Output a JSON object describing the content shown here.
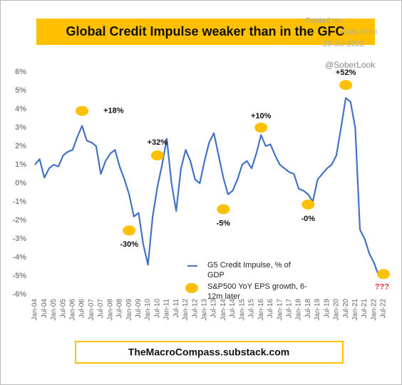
{
  "chart_data": {
    "type": "line",
    "title": "Global Credit Impulse weaker than in the GFC",
    "watermark": [
      "Posted on",
      "Daily Shot",
      "29-Jul-2022"
    ],
    "handle": "@SoberLook",
    "footer": "TheMacroCompass.substack.com",
    "categories": [
      "Jan-04",
      null,
      "Jul-04",
      null,
      "Jan-05",
      null,
      "Jul-05",
      null,
      "Jan-06",
      null,
      "Jul-06",
      null,
      "Jan-07",
      null,
      "Jul-07",
      null,
      "Jan-08",
      null,
      "Jul-08",
      null,
      "Jan-09",
      null,
      "Jul-09",
      null,
      "Jan-10",
      null,
      "Jul-10",
      null,
      "Jan-11",
      null,
      "Jul-11",
      null,
      "Jan-12",
      null,
      "Jul-12",
      null,
      "Jan-13",
      null,
      "Jul-13",
      null,
      "Jan-14",
      null,
      "Jul-14",
      null,
      "Jan-15",
      null,
      "Jul-15",
      null,
      "Jan-16",
      null,
      "Jul-16",
      null,
      "Jan-17",
      null,
      "Jul-17",
      null,
      "Jan-18",
      null,
      "Jul-18",
      null,
      "Jan-19",
      null,
      "Jul-19",
      null,
      "Jan-20",
      null,
      "Jul-20",
      null,
      "Jan-21",
      null,
      "Jul-21",
      null,
      "Jan-22",
      null,
      "Jul-22"
    ],
    "series": [
      {
        "name": "G5 Credit Impulse, % of GDP",
        "color": "#4472c4",
        "values": [
          1.0,
          1.3,
          0.3,
          0.8,
          1.0,
          0.9,
          1.5,
          1.7,
          1.8,
          2.5,
          3.1,
          2.3,
          2.2,
          2.0,
          0.5,
          1.2,
          1.6,
          1.8,
          0.9,
          0.2,
          -0.6,
          -1.8,
          -1.6,
          -3.3,
          -4.4,
          -1.8,
          -0.2,
          1.0,
          2.4,
          0.0,
          -1.5,
          0.8,
          1.8,
          1.2,
          0.2,
          0.0,
          1.2,
          2.2,
          2.7,
          1.5,
          0.3,
          -0.6,
          -0.4,
          0.2,
          1.0,
          1.2,
          0.8,
          1.6,
          2.6,
          2.0,
          2.1,
          1.5,
          1.0,
          0.8,
          0.6,
          0.5,
          -0.3,
          -0.4,
          -0.6,
          -1.0,
          0.2,
          0.5,
          0.8,
          1.0,
          1.5,
          3.0,
          4.6,
          4.4,
          3.0,
          -2.5,
          -3.0,
          -3.8,
          -4.3,
          -5.0,
          null
        ]
      }
    ],
    "eps_series": {
      "name": "S&P500 YoY EPS growth, 6-12m later",
      "color": "#ffc000",
      "points": [
        {
          "label": "+18%",
          "x": "Jul-06",
          "y": 3.9
        },
        {
          "label": "-30%",
          "x": "Jan-09",
          "y": -2.55
        },
        {
          "label": "+32%",
          "x": "Jul-10",
          "y": 1.5
        },
        {
          "label": "-5%",
          "x": "Jan-14",
          "y": -1.4
        },
        {
          "label": "+10%",
          "x": "Jan-16",
          "y": 3.0
        },
        {
          "label": "-0%",
          "x": "Jul-18",
          "y": -1.15
        },
        {
          "label": "+52%",
          "x": "Jul-20",
          "y": 5.3
        },
        {
          "label": "???",
          "x": "Jul-22",
          "y": -4.9
        }
      ]
    },
    "ylim": [
      -6,
      6
    ],
    "yticks": [
      {
        "value": -6,
        "label": "-6%"
      },
      {
        "value": -5,
        "label": "-5%"
      },
      {
        "value": -4,
        "label": "-4%"
      },
      {
        "value": -3,
        "label": "-3%"
      },
      {
        "value": -2,
        "label": "-2%"
      },
      {
        "value": -1,
        "label": "-1%"
      },
      {
        "value": 0,
        "label": "0%"
      },
      {
        "value": 1,
        "label": "1%"
      },
      {
        "value": 2,
        "label": "2%"
      },
      {
        "value": 3,
        "label": "3%"
      },
      {
        "value": 4,
        "label": "4%"
      },
      {
        "value": 5,
        "label": "5%"
      },
      {
        "value": 6,
        "label": "6%"
      }
    ]
  }
}
